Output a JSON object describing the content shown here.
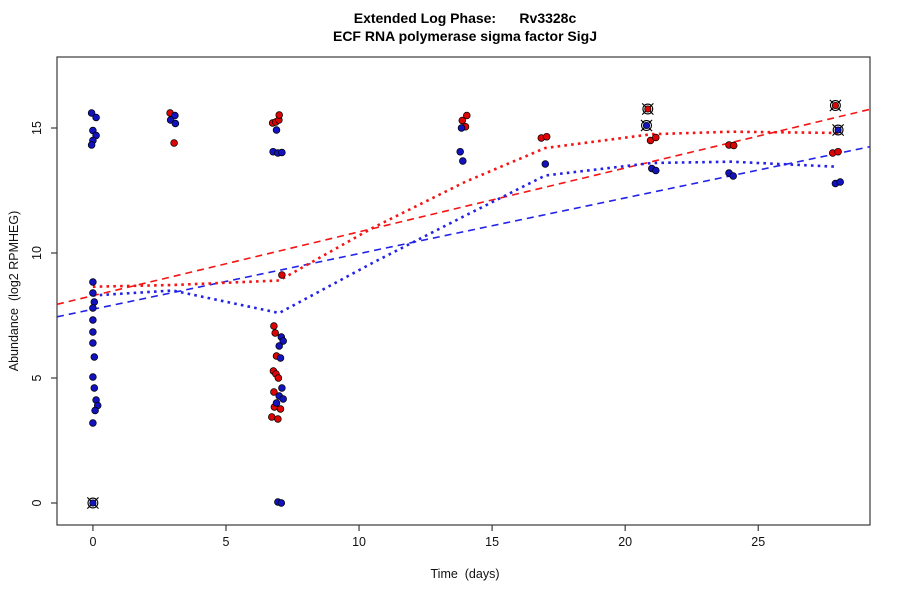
{
  "title": {
    "line1": "Extended Log Phase:      Rv3328c",
    "line2": "ECF RNA polymerase sigma factor SigJ"
  },
  "axes": {
    "x_label": "Time  (days)",
    "y_label": "Abundance  (log2 RPMHEG)"
  },
  "chart_data": {
    "type": "scatter",
    "title": "Extended Log Phase: Rv3328c",
    "subtitle": "ECF RNA polymerase sigma factor SigJ",
    "xlabel": "Time (days)",
    "ylabel": "Abundance (log2 RPMHEG)",
    "xlim": [
      -1.35,
      29.2
    ],
    "ylim": [
      -0.88,
      17.84
    ],
    "x_ticks": [
      0,
      5,
      10,
      15,
      20,
      25
    ],
    "y_ticks": [
      0,
      5,
      10,
      15
    ],
    "grid": false,
    "legend": "none",
    "series": [
      {
        "name": "red",
        "color": "#DD0404",
        "points": [
          [
            2.9,
            15.6
          ],
          [
            3.05,
            14.4
          ],
          [
            6.75,
            15.2
          ],
          [
            6.87,
            15.24
          ],
          [
            6.99,
            15.32
          ],
          [
            7.0,
            15.52
          ],
          [
            7.1,
            9.12
          ],
          [
            6.8,
            7.08
          ],
          [
            6.85,
            6.8
          ],
          [
            6.9,
            5.88
          ],
          [
            6.78,
            5.28
          ],
          [
            6.88,
            5.16
          ],
          [
            6.97,
            5.0
          ],
          [
            6.8,
            4.44
          ],
          [
            6.82,
            3.84
          ],
          [
            7.05,
            3.76
          ],
          [
            6.72,
            3.44
          ],
          [
            6.95,
            3.36
          ],
          [
            14.05,
            15.5
          ],
          [
            13.88,
            15.3
          ],
          [
            14.0,
            15.05
          ],
          [
            16.85,
            14.6
          ],
          [
            17.05,
            14.65
          ],
          [
            20.95,
            14.5
          ],
          [
            21.15,
            14.62
          ],
          [
            23.9,
            14.32
          ],
          [
            24.08,
            14.3
          ],
          [
            27.8,
            14.0
          ],
          [
            28.0,
            14.05
          ]
        ]
      },
      {
        "name": "blue",
        "color": "#1212BE",
        "points": [
          [
            -0.05,
            15.6
          ],
          [
            0.12,
            15.42
          ],
          [
            0.0,
            14.9
          ],
          [
            0.12,
            14.7
          ],
          [
            0.0,
            14.5
          ],
          [
            -0.05,
            14.32
          ],
          [
            0.0,
            8.84
          ],
          [
            0.0,
            8.4
          ],
          [
            0.05,
            8.04
          ],
          [
            0.0,
            7.8
          ],
          [
            0.0,
            7.32
          ],
          [
            0.0,
            6.84
          ],
          [
            0.0,
            6.4
          ],
          [
            0.05,
            5.84
          ],
          [
            0.0,
            5.04
          ],
          [
            0.05,
            4.6
          ],
          [
            0.12,
            4.12
          ],
          [
            0.18,
            3.9
          ],
          [
            0.08,
            3.7
          ],
          [
            0.0,
            3.2
          ],
          [
            2.92,
            15.32
          ],
          [
            3.08,
            15.5
          ],
          [
            3.1,
            15.18
          ],
          [
            6.9,
            14.92
          ],
          [
            6.77,
            14.05
          ],
          [
            6.95,
            14.0
          ],
          [
            7.1,
            14.02
          ],
          [
            7.08,
            6.64
          ],
          [
            7.15,
            6.48
          ],
          [
            7.0,
            6.28
          ],
          [
            7.05,
            5.8
          ],
          [
            7.1,
            4.6
          ],
          [
            7.0,
            4.28
          ],
          [
            7.15,
            4.16
          ],
          [
            6.9,
            4.0
          ],
          [
            6.95,
            0.04
          ],
          [
            7.08,
            0.0
          ],
          [
            13.85,
            15.0
          ],
          [
            13.8,
            14.05
          ],
          [
            13.9,
            13.68
          ],
          [
            17.0,
            13.56
          ],
          [
            21.0,
            13.38
          ],
          [
            21.15,
            13.3
          ],
          [
            23.9,
            13.2
          ],
          [
            24.06,
            13.08
          ],
          [
            27.9,
            12.78
          ],
          [
            28.08,
            12.84
          ]
        ]
      }
    ],
    "flagged_points": [
      {
        "series": "blue",
        "x": 0.0,
        "y": 0.0
      },
      {
        "series": "red",
        "x": 20.85,
        "y": 15.76
      },
      {
        "series": "blue",
        "x": 20.8,
        "y": 15.1
      },
      {
        "series": "red",
        "x": 27.9,
        "y": 15.9
      },
      {
        "series": "blue",
        "x": 28.0,
        "y": 14.92
      }
    ],
    "trend_lines": [
      {
        "name": "red-linear-fit",
        "color": "#F51414",
        "style": "dashed",
        "points": [
          [
            -1.35,
            7.95
          ],
          [
            29.2,
            15.75
          ]
        ]
      },
      {
        "name": "blue-linear-fit",
        "color": "#2323E8",
        "style": "dashed",
        "points": [
          [
            -1.35,
            7.45
          ],
          [
            29.2,
            14.25
          ]
        ]
      },
      {
        "name": "red-loess-fit",
        "color": "#F51414",
        "style": "dotted",
        "points": [
          [
            0,
            8.65
          ],
          [
            3,
            8.72
          ],
          [
            7,
            8.9
          ],
          [
            10.5,
            11.0
          ],
          [
            14,
            12.85
          ],
          [
            17,
            14.2
          ],
          [
            21,
            14.75
          ],
          [
            24,
            14.85
          ],
          [
            28,
            14.8
          ]
        ]
      },
      {
        "name": "blue-loess-fit",
        "color": "#2323E8",
        "style": "dotted",
        "points": [
          [
            0,
            8.3
          ],
          [
            3,
            8.5
          ],
          [
            7,
            7.6
          ],
          [
            10.5,
            9.6
          ],
          [
            14,
            11.5
          ],
          [
            17,
            13.1
          ],
          [
            21,
            13.6
          ],
          [
            24,
            13.65
          ],
          [
            28,
            13.45
          ]
        ]
      }
    ]
  }
}
